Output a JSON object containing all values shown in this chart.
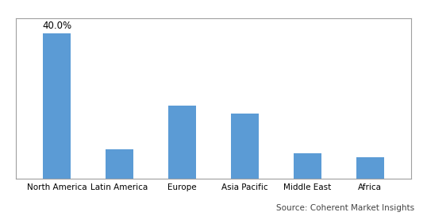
{
  "categories": [
    "North America",
    "Latin America",
    "Europe",
    "Asia Pacific",
    "Middle East",
    "Africa"
  ],
  "values": [
    40.0,
    8.0,
    20.0,
    18.0,
    7.0,
    6.0
  ],
  "bar_color": "#5b9bd5",
  "annotation_label": "40.0%",
  "annotation_index": 0,
  "ylim": [
    0,
    44
  ],
  "yticks": [
    0,
    4,
    8,
    12,
    16,
    20,
    24,
    28,
    32,
    36,
    40,
    44
  ],
  "ylabel": "",
  "xlabel": "",
  "source_text": "Source: Coherent Market Insights",
  "background_color": "#ffffff",
  "grid_color": "#c8c8c8",
  "bar_width": 0.45,
  "annotation_fontsize": 8.5,
  "tick_fontsize": 7.5,
  "source_fontsize": 7.5,
  "border_color": "#a0a0a0"
}
